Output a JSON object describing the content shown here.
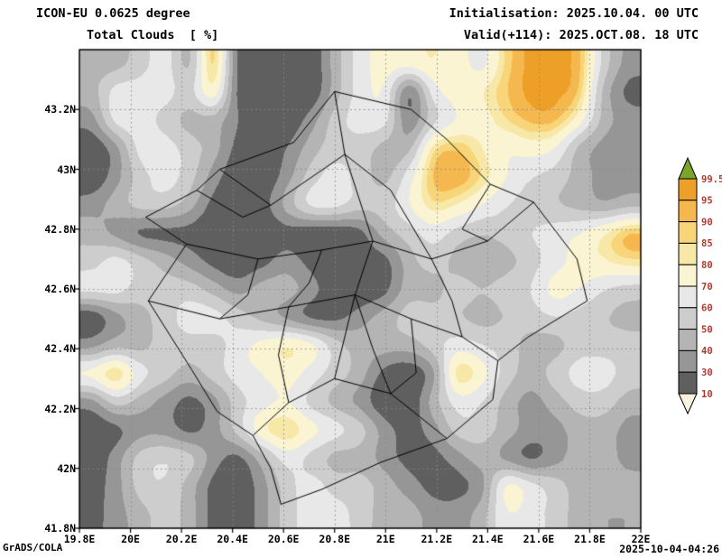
{
  "header": {
    "model_line": "ICON-EU 0.0625 degree",
    "param_line": "Total Clouds  [ %]",
    "init_line": "Initialisation: 2025.10.04. 00 UTC",
    "valid_line": "Valid(+114): 2025.OCT.08. 18 UTC"
  },
  "footer": {
    "engine": "GrADS/COLA",
    "created": "2025-10-04-04:26"
  },
  "chart_data": {
    "type": "heatmap",
    "title": "Total Clouds [ %]",
    "units": "%",
    "lon_range": [
      19.8,
      22.0
    ],
    "lat_range": [
      41.8,
      43.4
    ],
    "x_ticks": {
      "values": [
        19.8,
        20.0,
        20.2,
        20.4,
        20.6,
        20.8,
        21.0,
        21.2,
        21.4,
        21.6,
        21.8,
        22.0
      ],
      "labels": [
        "19.8E",
        "20E",
        "20.2E",
        "20.4E",
        "20.6E",
        "20.8E",
        "21E",
        "21.2E",
        "21.4E",
        "21.6E",
        "21.8E",
        "22E"
      ]
    },
    "y_ticks": {
      "values": [
        43.2,
        43.0,
        42.8,
        42.6,
        42.4,
        42.2,
        42.0,
        41.8
      ],
      "labels": [
        "43.2N",
        "43N",
        "42.8N",
        "42.6N",
        "42.4N",
        "42.2N",
        "42N",
        "41.8N"
      ]
    },
    "levels": [
      10,
      30,
      40,
      50,
      60,
      70,
      80,
      85,
      90,
      95,
      99.5
    ],
    "band_colors": [
      "#f8f3df",
      "#5f5f5f",
      "#969696",
      "#b4b4b4",
      "#cdcdcd",
      "#e8e8e8",
      "#faf4d2",
      "#f8e8a8",
      "#f7d578",
      "#f4b84e",
      "#ee9f27",
      "#7aa42c"
    ],
    "colorbar": {
      "labels": [
        "99.5",
        "95",
        "90",
        "85",
        "80",
        "70",
        "60",
        "50",
        "40",
        "30",
        "10"
      ],
      "label_color": "#b03a2e"
    },
    "grid": {
      "nx": 23,
      "ny": 17,
      "lon0": 19.8,
      "dlon": 0.1,
      "lat0": 43.4,
      "dlat": -0.1,
      "values": [
        [
          45,
          45,
          55,
          65,
          45,
          92,
          25,
          20,
          20,
          20,
          45,
          65,
          75,
          75,
          80,
          75,
          65,
          87,
          97,
          97,
          92,
          55,
          35
        ],
        [
          45,
          65,
          65,
          65,
          55,
          80,
          25,
          20,
          20,
          20,
          45,
          65,
          70,
          25,
          65,
          75,
          80,
          90,
          97,
          97,
          90,
          45,
          25
        ],
        [
          35,
          65,
          65,
          55,
          45,
          45,
          30,
          20,
          20,
          35,
          55,
          65,
          65,
          30,
          55,
          70,
          75,
          85,
          92,
          92,
          75,
          45,
          35
        ],
        [
          20,
          35,
          65,
          65,
          55,
          45,
          25,
          20,
          30,
          45,
          55,
          55,
          45,
          45,
          85,
          90,
          80,
          70,
          75,
          70,
          45,
          35,
          30
        ],
        [
          20,
          35,
          55,
          65,
          55,
          35,
          20,
          20,
          35,
          55,
          65,
          55,
          45,
          65,
          92,
          95,
          85,
          70,
          60,
          55,
          45,
          35,
          35
        ],
        [
          35,
          45,
          55,
          55,
          45,
          25,
          20,
          25,
          45,
          65,
          65,
          55,
          55,
          70,
          85,
          80,
          70,
          60,
          55,
          50,
          45,
          40,
          45
        ],
        [
          45,
          35,
          25,
          25,
          25,
          20,
          20,
          20,
          25,
          20,
          20,
          25,
          45,
          55,
          65,
          55,
          50,
          55,
          60,
          65,
          70,
          80,
          92
        ],
        [
          55,
          65,
          55,
          45,
          35,
          25,
          20,
          25,
          35,
          25,
          20,
          25,
          25,
          45,
          55,
          45,
          40,
          45,
          55,
          65,
          75,
          80,
          85
        ],
        [
          65,
          65,
          55,
          55,
          55,
          45,
          35,
          45,
          45,
          35,
          20,
          20,
          25,
          45,
          45,
          55,
          50,
          55,
          60,
          75,
          70,
          60,
          55
        ],
        [
          20,
          35,
          45,
          55,
          65,
          65,
          55,
          45,
          35,
          25,
          25,
          35,
          45,
          55,
          55,
          50,
          45,
          50,
          55,
          60,
          55,
          50,
          45
        ],
        [
          35,
          45,
          45,
          55,
          55,
          55,
          65,
          75,
          82,
          75,
          55,
          45,
          45,
          45,
          55,
          65,
          60,
          55,
          45,
          45,
          55,
          55,
          55
        ],
        [
          75,
          90,
          65,
          55,
          45,
          55,
          65,
          70,
          75,
          65,
          55,
          45,
          25,
          20,
          35,
          88,
          75,
          55,
          45,
          55,
          65,
          65,
          55
        ],
        [
          35,
          55,
          45,
          35,
          25,
          35,
          55,
          65,
          70,
          55,
          45,
          35,
          20,
          20,
          45,
          65,
          60,
          45,
          35,
          45,
          55,
          55,
          45
        ],
        [
          20,
          25,
          35,
          35,
          25,
          35,
          55,
          80,
          88,
          75,
          65,
          55,
          35,
          25,
          35,
          55,
          55,
          45,
          35,
          35,
          45,
          45,
          35
        ],
        [
          20,
          35,
          55,
          60,
          55,
          35,
          25,
          45,
          65,
          55,
          45,
          45,
          35,
          25,
          25,
          35,
          45,
          35,
          25,
          35,
          45,
          45,
          35
        ],
        [
          25,
          35,
          55,
          60,
          45,
          25,
          20,
          35,
          55,
          65,
          55,
          55,
          45,
          35,
          25,
          25,
          35,
          75,
          65,
          55,
          45,
          45,
          45
        ],
        [
          25,
          35,
          45,
          55,
          45,
          25,
          20,
          35,
          55,
          65,
          65,
          55,
          45,
          45,
          35,
          35,
          45,
          70,
          65,
          55,
          45,
          40,
          40
        ]
      ]
    },
    "borders": [
      [
        [
          20.07,
          42.56
        ],
        [
          20.24,
          42.33
        ],
        [
          20.34,
          42.19
        ],
        [
          20.48,
          42.11
        ],
        [
          20.55,
          42.0
        ],
        [
          20.59,
          41.88
        ],
        [
          20.75,
          41.93
        ],
        [
          20.98,
          42.02
        ],
        [
          21.24,
          42.1
        ],
        [
          21.42,
          42.23
        ],
        [
          21.44,
          42.36
        ],
        [
          21.56,
          42.44
        ],
        [
          21.79,
          42.56
        ],
        [
          21.75,
          42.7
        ],
        [
          21.58,
          42.89
        ],
        [
          21.41,
          42.95
        ],
        [
          21.24,
          43.1
        ],
        [
          21.1,
          43.2
        ],
        [
          20.8,
          43.26
        ],
        [
          20.64,
          43.09
        ],
        [
          20.35,
          43.0
        ],
        [
          20.26,
          42.93
        ],
        [
          20.06,
          42.84
        ],
        [
          20.22,
          42.75
        ],
        [
          20.07,
          42.56
        ]
      ],
      [
        [
          20.07,
          42.56
        ],
        [
          20.35,
          42.5
        ],
        [
          20.62,
          42.54
        ],
        [
          20.88,
          42.58
        ],
        [
          21.1,
          42.5
        ],
        [
          21.3,
          42.44
        ],
        [
          21.44,
          42.36
        ]
      ],
      [
        [
          20.22,
          42.75
        ],
        [
          20.5,
          42.7
        ],
        [
          20.75,
          42.73
        ],
        [
          20.95,
          42.76
        ],
        [
          21.18,
          42.7
        ],
        [
          21.4,
          42.76
        ],
        [
          21.58,
          42.89
        ]
      ],
      [
        [
          20.8,
          43.26
        ],
        [
          20.84,
          43.05
        ],
        [
          20.95,
          42.76
        ],
        [
          20.88,
          42.58
        ],
        [
          20.95,
          42.4
        ],
        [
          21.02,
          42.25
        ],
        [
          21.24,
          42.1
        ]
      ],
      [
        [
          20.35,
          43.0
        ],
        [
          20.55,
          42.88
        ],
        [
          20.84,
          43.05
        ]
      ],
      [
        [
          20.48,
          42.11
        ],
        [
          20.62,
          42.22
        ],
        [
          20.8,
          42.3
        ],
        [
          21.02,
          42.25
        ]
      ],
      [
        [
          20.62,
          42.54
        ],
        [
          20.58,
          42.38
        ],
        [
          20.62,
          42.22
        ]
      ],
      [
        [
          21.18,
          42.7
        ],
        [
          21.26,
          42.56
        ],
        [
          21.3,
          42.44
        ]
      ],
      [
        [
          20.5,
          42.7
        ],
        [
          20.46,
          42.58
        ],
        [
          20.35,
          42.5
        ]
      ],
      [
        [
          21.1,
          42.5
        ],
        [
          21.12,
          42.32
        ],
        [
          21.02,
          42.25
        ]
      ],
      [
        [
          20.26,
          42.93
        ],
        [
          20.44,
          42.84
        ],
        [
          20.55,
          42.88
        ]
      ],
      [
        [
          21.41,
          42.95
        ],
        [
          21.3,
          42.8
        ],
        [
          21.4,
          42.76
        ]
      ],
      [
        [
          20.75,
          42.73
        ],
        [
          20.7,
          42.62
        ],
        [
          20.62,
          42.54
        ]
      ],
      [
        [
          20.84,
          43.05
        ],
        [
          21.02,
          42.93
        ],
        [
          21.18,
          42.7
        ]
      ],
      [
        [
          20.88,
          42.58
        ],
        [
          20.8,
          42.3
        ]
      ]
    ]
  }
}
